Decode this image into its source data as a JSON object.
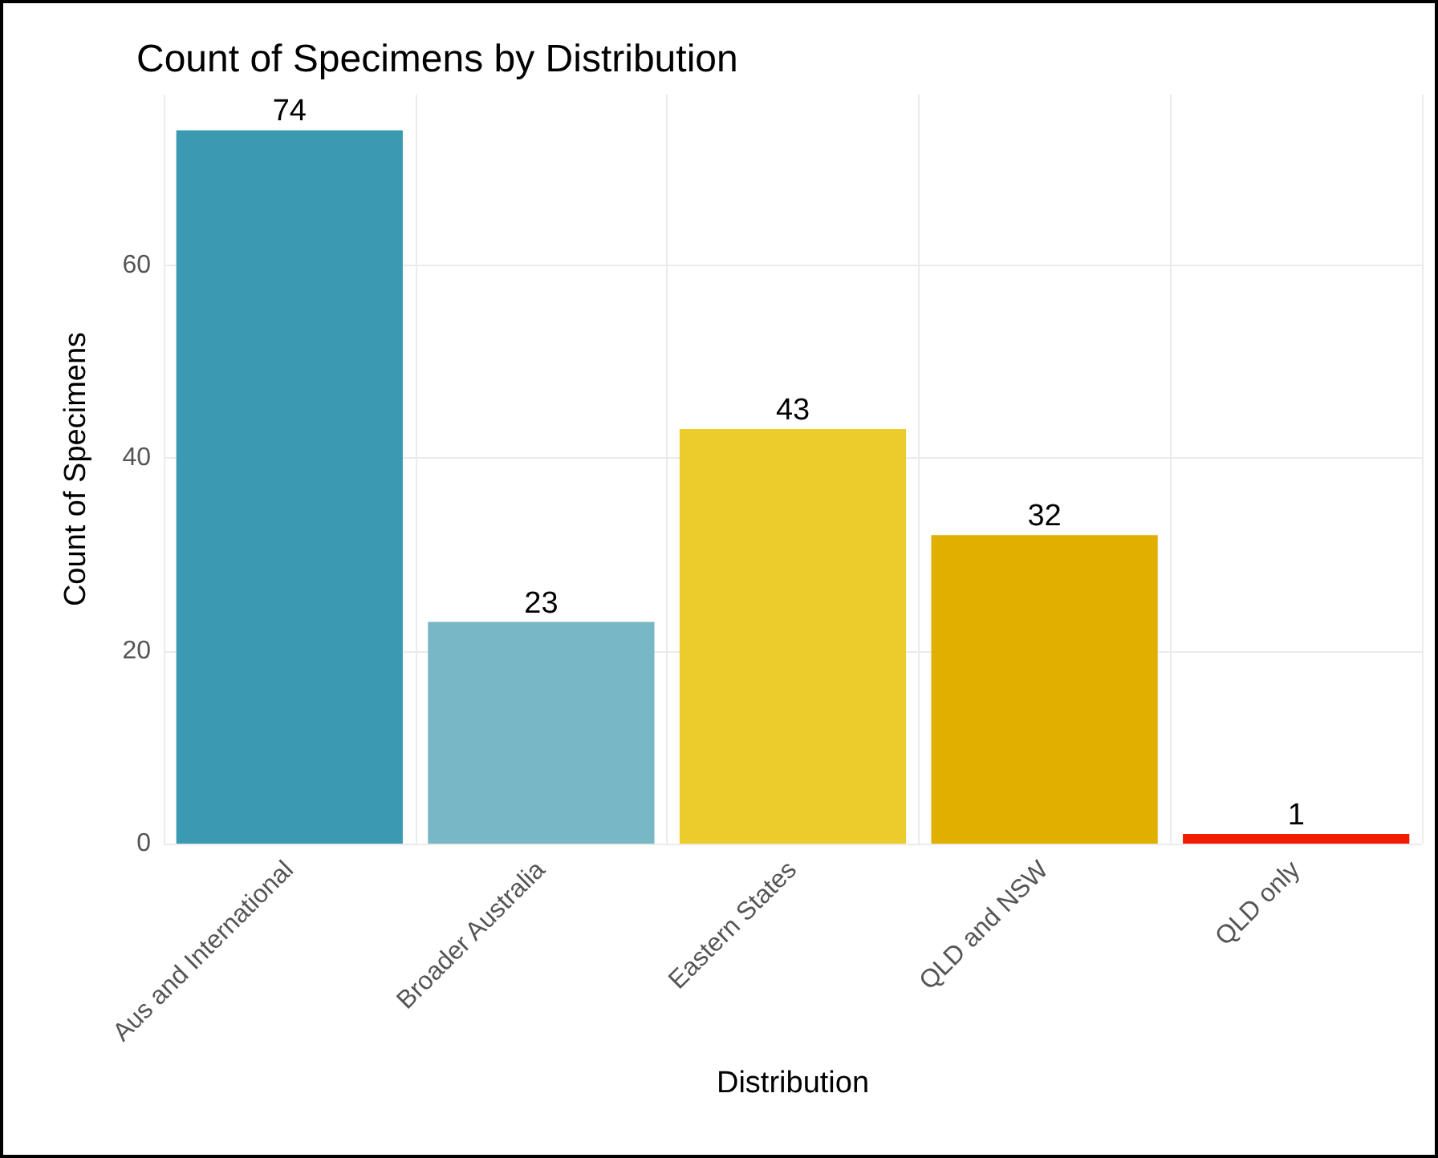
{
  "chart_data": {
    "type": "bar",
    "title": "Count of Specimens by Distribution",
    "xlabel": "Distribution",
    "ylabel": "Count of Specimens",
    "categories": [
      "Aus and International",
      "Broader Australia",
      "Eastern States",
      "QLD and NSW",
      "QLD only"
    ],
    "values": [
      74,
      23,
      43,
      32,
      1
    ],
    "colors": [
      "#3a9ab2",
      "#78b7c5",
      "#ebcc2a",
      "#e1af00",
      "#f21a00"
    ],
    "ylim": [
      0,
      77.7
    ],
    "yticks": [
      0,
      20,
      40,
      60
    ],
    "grid": true,
    "data_labels": true
  }
}
